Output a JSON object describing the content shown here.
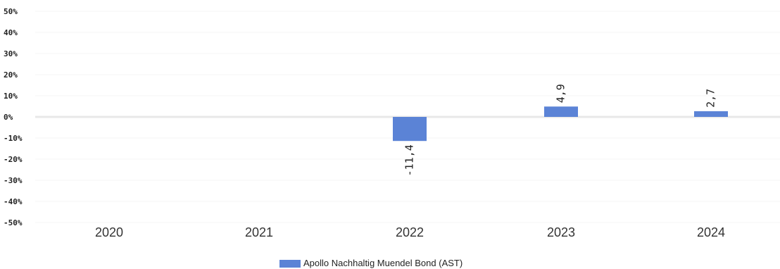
{
  "chart_data": {
    "type": "bar",
    "categories": [
      "2020",
      "2021",
      "2022",
      "2023",
      "2024"
    ],
    "series": [
      {
        "name": "Apollo Nachhaltig Muendel Bond (AST)",
        "values": [
          null,
          null,
          -11.4,
          4.9,
          2.7
        ],
        "data_labels": [
          "",
          "",
          "-11,4",
          "4,9",
          "2,7"
        ],
        "color": "#5b83d6"
      }
    ],
    "ylim": [
      -50,
      50
    ],
    "y_ticks": [
      {
        "value": 50,
        "label": "50%"
      },
      {
        "value": 40,
        "label": "40%"
      },
      {
        "value": 30,
        "label": "30%"
      },
      {
        "value": 20,
        "label": "20%"
      },
      {
        "value": 10,
        "label": "10%"
      },
      {
        "value": 0,
        "label": "0%"
      },
      {
        "value": -10,
        "label": "-10%"
      },
      {
        "value": -20,
        "label": "-20%"
      },
      {
        "value": -30,
        "label": "-30%"
      },
      {
        "value": -40,
        "label": "-40%"
      },
      {
        "value": -50,
        "label": "-50%"
      }
    ],
    "grid": true,
    "legend_position": "bottom-center",
    "zero_line_color": "#e8e8e8",
    "grid_color": "#f5f5f5"
  }
}
